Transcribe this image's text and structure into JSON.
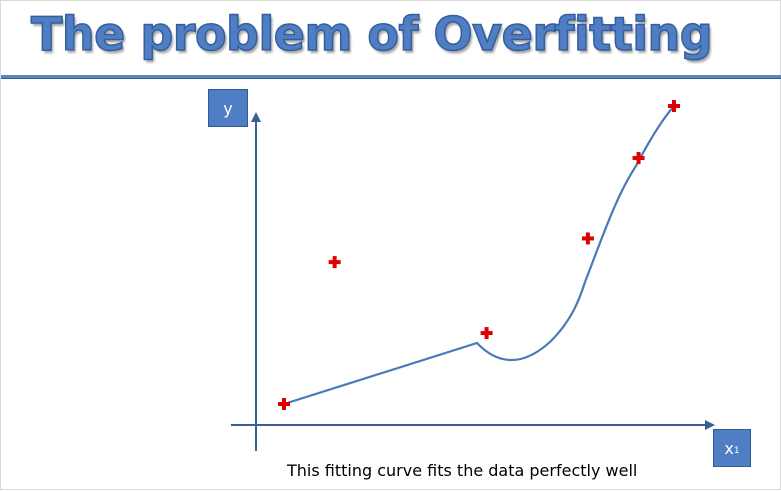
{
  "title": "The problem of Overfitting",
  "axes": {
    "y_label": "y",
    "x_label_main": "x",
    "x_label_sub": "1"
  },
  "caption": "This fitting curve fits the data perfectly well",
  "colors": {
    "title": "#4f7ec4",
    "axis": "#3a5f95",
    "curve": "#4a78b8",
    "marker": "#e00000"
  },
  "chart_data": {
    "type": "scatter",
    "title": "The problem of Overfitting",
    "xlabel": "x1",
    "ylabel": "y",
    "points": [
      {
        "x": 1.0,
        "y": 1.0
      },
      {
        "x": 2.0,
        "y": 4.0
      },
      {
        "x": 5.0,
        "y": 2.5
      },
      {
        "x": 7.0,
        "y": 4.5
      },
      {
        "x": 8.0,
        "y": 6.2
      },
      {
        "x": 8.7,
        "y": 7.3
      }
    ],
    "fitted_curve": {
      "description": "overfit curve",
      "passes_through": [
        {
          "x": 1.0,
          "y": 1.0
        },
        {
          "x": 5.0,
          "y": 2.5
        },
        {
          "x": 7.0,
          "y": 4.5
        },
        {
          "x": 8.0,
          "y": 6.2
        },
        {
          "x": 8.7,
          "y": 7.3
        }
      ]
    }
  }
}
